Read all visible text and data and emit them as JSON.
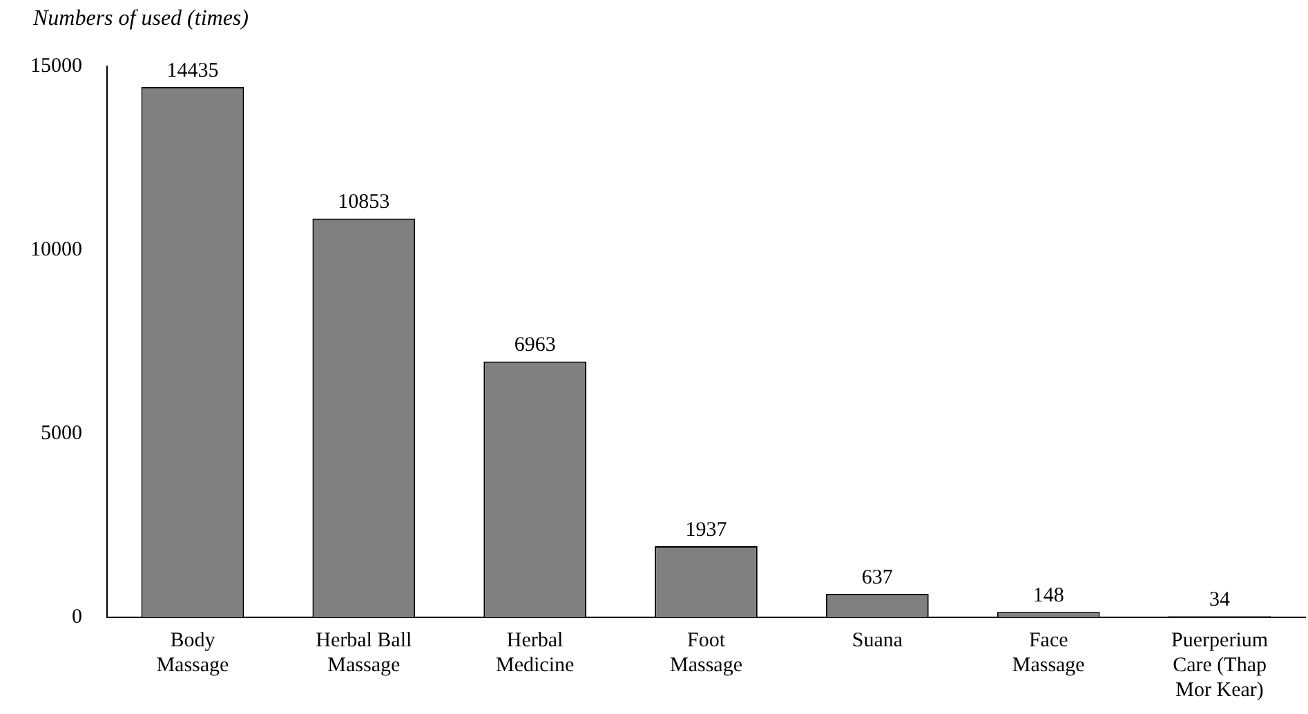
{
  "chart_data": {
    "type": "bar",
    "ylabel": "Numbers of used (times)",
    "categories": [
      "Body Massage",
      "Herbal Ball Massage",
      "Herbal Medicine",
      "Foot Massage",
      "Suana",
      "Face Massage",
      "Puerperium Care (Thap Mor Kear)"
    ],
    "values": [
      14435,
      10853,
      6963,
      1937,
      637,
      148,
      34
    ],
    "color": "#808080",
    "ylim": [
      0,
      15000
    ],
    "yticks": [
      0,
      5000,
      10000,
      15000
    ],
    "grid": false,
    "legend": false,
    "data_labels": true
  }
}
